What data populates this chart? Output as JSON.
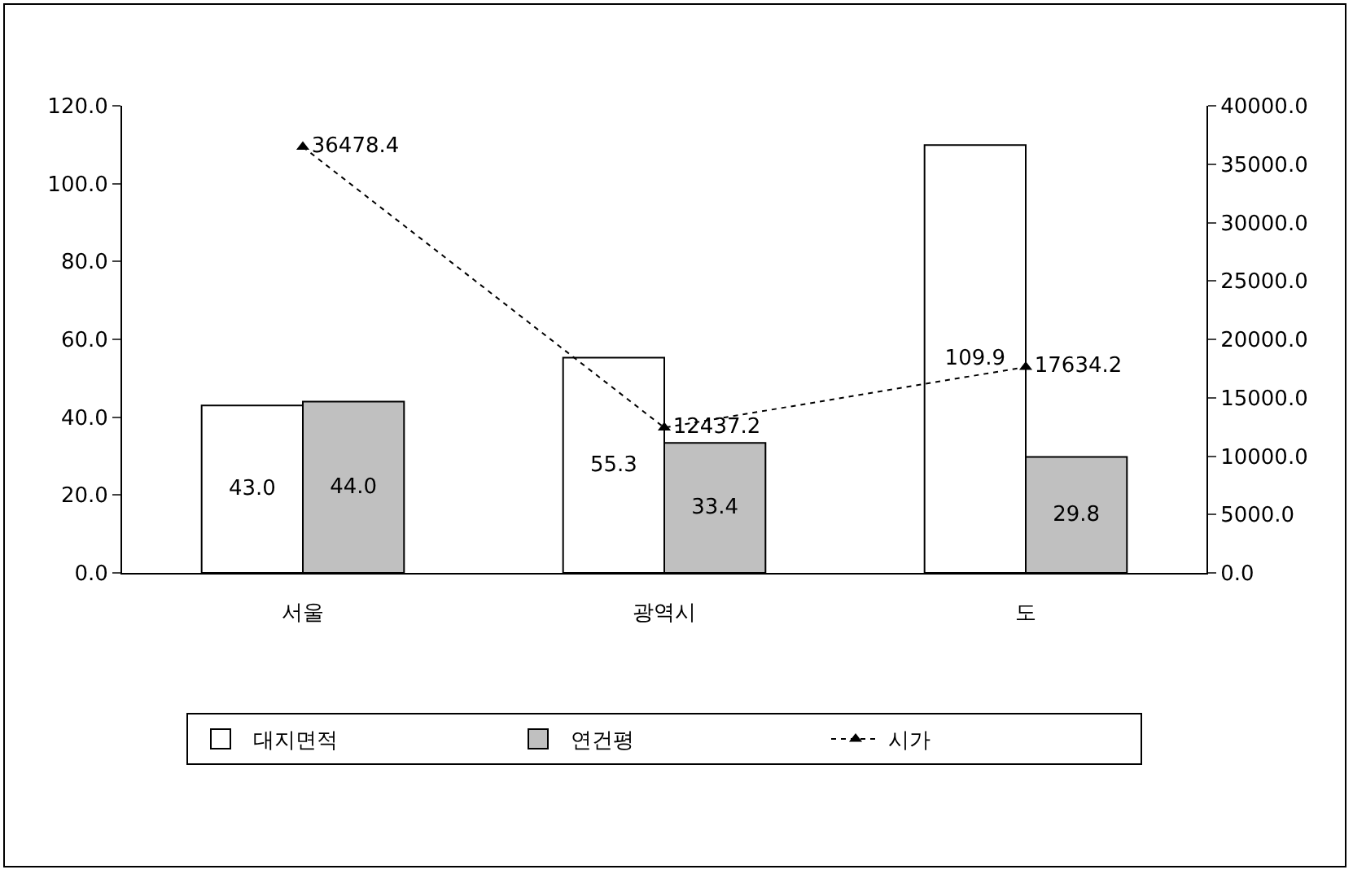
{
  "chart_data": {
    "type": "bar",
    "categories": [
      "서울",
      "광역시",
      "도"
    ],
    "series": [
      {
        "name": "대지면적",
        "color": "#ffffff",
        "values": [
          43.0,
          55.3,
          109.9
        ],
        "value_labels": [
          "43.0",
          "55.3",
          "109.9"
        ]
      },
      {
        "name": "연건평",
        "color": "#c0c0c0",
        "values": [
          44.0,
          33.4,
          29.8
        ],
        "value_labels": [
          "44.0",
          "33.4",
          "29.8"
        ]
      },
      {
        "name": "시가",
        "type": "line",
        "axis": "y2",
        "color": "#000000",
        "values": [
          36478.4,
          12437.2,
          17634.2
        ],
        "value_labels": [
          "36478.4",
          "12437.2",
          "17634.2"
        ],
        "marker": "triangle",
        "line_style": "dotted"
      }
    ],
    "ylim": [
      0,
      120
    ],
    "yticks": [
      {
        "value": 0,
        "label": "0.0"
      },
      {
        "value": 20,
        "label": "20.0"
      },
      {
        "value": 40,
        "label": "40.0"
      },
      {
        "value": 60,
        "label": "60.0"
      },
      {
        "value": 80,
        "label": "80.0"
      },
      {
        "value": 100,
        "label": "100.0"
      },
      {
        "value": 120,
        "label": "120.0"
      }
    ],
    "y2lim": [
      0,
      40000
    ],
    "y2ticks": [
      {
        "value": 0,
        "label": "0.0"
      },
      {
        "value": 5000,
        "label": "5000.0"
      },
      {
        "value": 10000,
        "label": "10000.0"
      },
      {
        "value": 15000,
        "label": "15000.0"
      },
      {
        "value": 20000,
        "label": "20000.0"
      },
      {
        "value": 25000,
        "label": "25000.0"
      },
      {
        "value": 30000,
        "label": "30000.0"
      },
      {
        "value": 35000,
        "label": "35000.0"
      },
      {
        "value": 40000,
        "label": "40000.0"
      }
    ],
    "grid": false,
    "legend": "bottom"
  }
}
